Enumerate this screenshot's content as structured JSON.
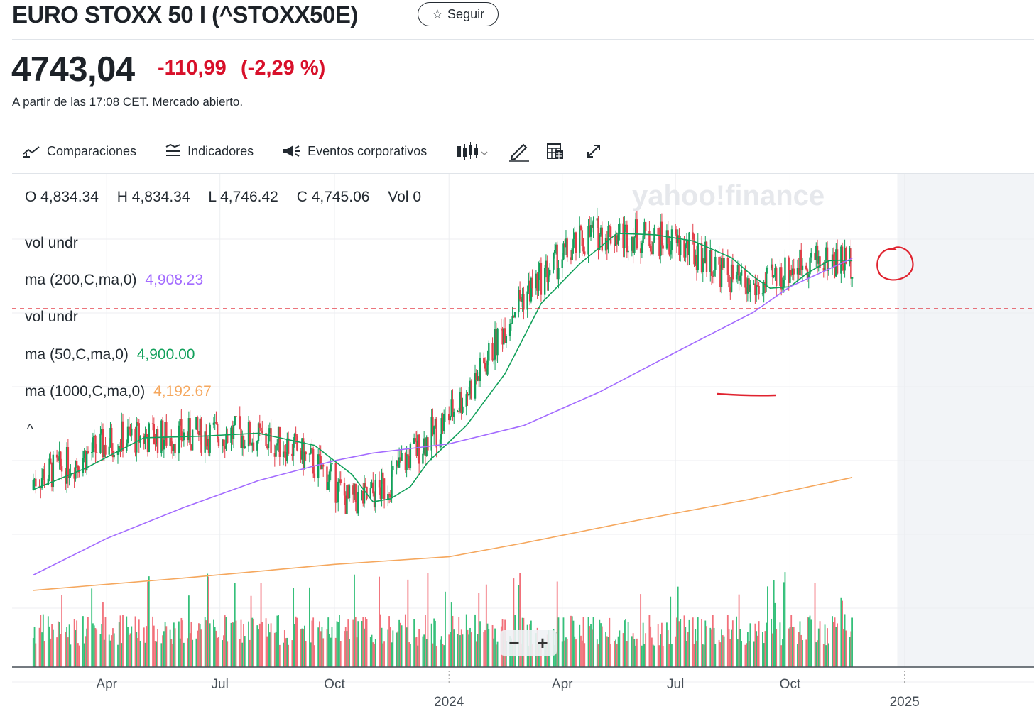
{
  "header": {
    "title": "EURO STOXX 50 I (^STOXX50E)",
    "follow_label": "Seguir",
    "price": "4743,04",
    "change": "-110,99",
    "change_pct": "(-2,29 %)",
    "as_of": "A partir de las 17:08 CET. Mercado abierto.",
    "negative_color": "#d8102a"
  },
  "toolbar": {
    "comparisons": "Comparaciones",
    "indicators": "Indicadores",
    "events": "Eventos corporativos"
  },
  "legend": {
    "ohlc": {
      "O": "4,834.34",
      "H": "4,834.34",
      "L": "4,746.42",
      "C": "4,745.06",
      "Vol": "0"
    },
    "vol1": "vol undr",
    "ma200_label": "ma (200,C,ma,0)",
    "ma200_value": "4,908.23",
    "vol2": "vol undr",
    "ma50_label": "ma (50,C,ma,0)",
    "ma50_value": "4,900.00",
    "ma1000_label": "ma (1000,C,ma,0)",
    "ma1000_value": "4,192.67"
  },
  "watermark": "yahoo!finance",
  "chart_data": {
    "type": "line",
    "xlabels": [
      "Apr",
      "Jul",
      "Oct",
      "2024",
      "Apr",
      "Jul",
      "Oct",
      "2025"
    ],
    "ylim": [
      3650,
      5150
    ],
    "series": [
      {
        "name": "ma (50,C,ma,0)",
        "color": "#11a05a",
        "x": [
          "2023-02-01",
          "2023-03-15",
          "2023-05-01",
          "2023-06-15",
          "2023-08-01",
          "2023-09-15",
          "2023-10-15",
          "2023-11-01",
          "2023-11-15",
          "2023-12-01",
          "2023-12-15",
          "2024-01-15",
          "2024-02-15",
          "2024-03-15",
          "2024-04-15",
          "2024-05-15",
          "2024-06-15",
          "2024-07-15",
          "2024-08-15",
          "2024-09-01",
          "2024-09-15",
          "2024-10-01",
          "2024-10-15",
          "2024-11-01",
          "2024-11-10",
          "2024-11-20"
        ],
        "values": [
          4150,
          4220,
          4320,
          4325,
          4335,
          4295,
          4200,
          4110,
          4120,
          4160,
          4240,
          4360,
          4530,
          4760,
          4890,
          4990,
          4985,
          4965,
          4910,
          4850,
          4810,
          4815,
          4860,
          4900,
          4902,
          4900
        ]
      },
      {
        "name": "ma (200,C,ma,0)",
        "color": "#a36bff",
        "x": [
          "2023-02-01",
          "2023-04-01",
          "2023-06-01",
          "2023-08-01",
          "2023-10-01",
          "2023-11-01",
          "2024-01-01",
          "2024-03-01",
          "2024-05-01",
          "2024-07-01",
          "2024-09-01",
          "2024-10-01",
          "2024-11-20"
        ],
        "values": [
          3870,
          3990,
          4090,
          4180,
          4245,
          4270,
          4300,
          4360,
          4470,
          4600,
          4730,
          4815,
          4908
        ]
      },
      {
        "name": "ma (1000,C,ma,0)",
        "color": "#f5a75d",
        "x": [
          "2023-02-01",
          "2023-06-01",
          "2023-10-01",
          "2024-01-01",
          "2024-03-01",
          "2024-06-01",
          "2024-09-01",
          "2024-11-20"
        ],
        "values": [
          3820,
          3860,
          3905,
          3930,
          3975,
          4050,
          4120,
          4190
        ]
      }
    ],
    "annotations": {
      "support_line": 4743
    }
  }
}
